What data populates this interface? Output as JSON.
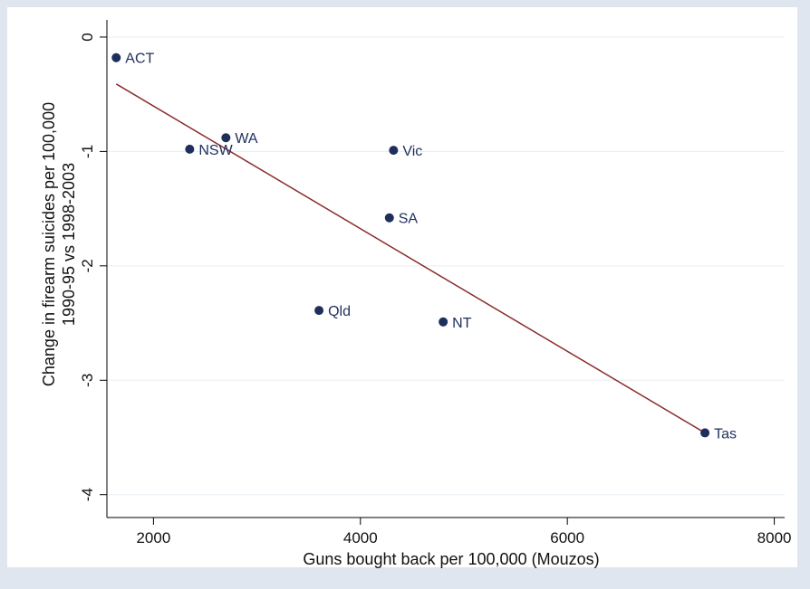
{
  "chart_data": {
    "type": "scatter",
    "xlabel": "Guns bought back per 100,000 (Mouzos)",
    "ylabel_lines": [
      "Change in firearm suicides per 100,000",
      "1990-95 vs 1998-2003"
    ],
    "xlim": [
      1550,
      8100
    ],
    "ylim": [
      -4.2,
      0.15
    ],
    "xticks": [
      2000,
      4000,
      6000,
      8000
    ],
    "xtick_labels": [
      "2000",
      "4000",
      "6000",
      "8000"
    ],
    "yticks": [
      0,
      -1,
      -2,
      -3,
      -4
    ],
    "ytick_labels": [
      "0",
      "-1",
      "-2",
      "-3",
      "-4"
    ],
    "grid": "horizontal",
    "legend": "none",
    "points": [
      {
        "label": "ACT",
        "x": 1640,
        "y": -0.18
      },
      {
        "label": "NSW",
        "x": 2350,
        "y": -0.98
      },
      {
        "label": "WA",
        "x": 2700,
        "y": -0.88
      },
      {
        "label": "Vic",
        "x": 4320,
        "y": -0.99
      },
      {
        "label": "SA",
        "x": 4280,
        "y": -1.58
      },
      {
        "label": "Qld",
        "x": 3600,
        "y": -2.39
      },
      {
        "label": "NT",
        "x": 4800,
        "y": -2.49
      },
      {
        "label": "Tas",
        "x": 7330,
        "y": -3.46
      }
    ],
    "fit_line": {
      "x": [
        1640,
        7330
      ],
      "y": [
        -0.41,
        -3.46
      ]
    },
    "colors": {
      "outer_background": "#dfe6ef",
      "plot_background": "#ffffff",
      "point": "#1f2f5c",
      "label": "#1f2f5c",
      "fit_line": "#8b2c2c",
      "gridline": "#e6edf4"
    }
  }
}
